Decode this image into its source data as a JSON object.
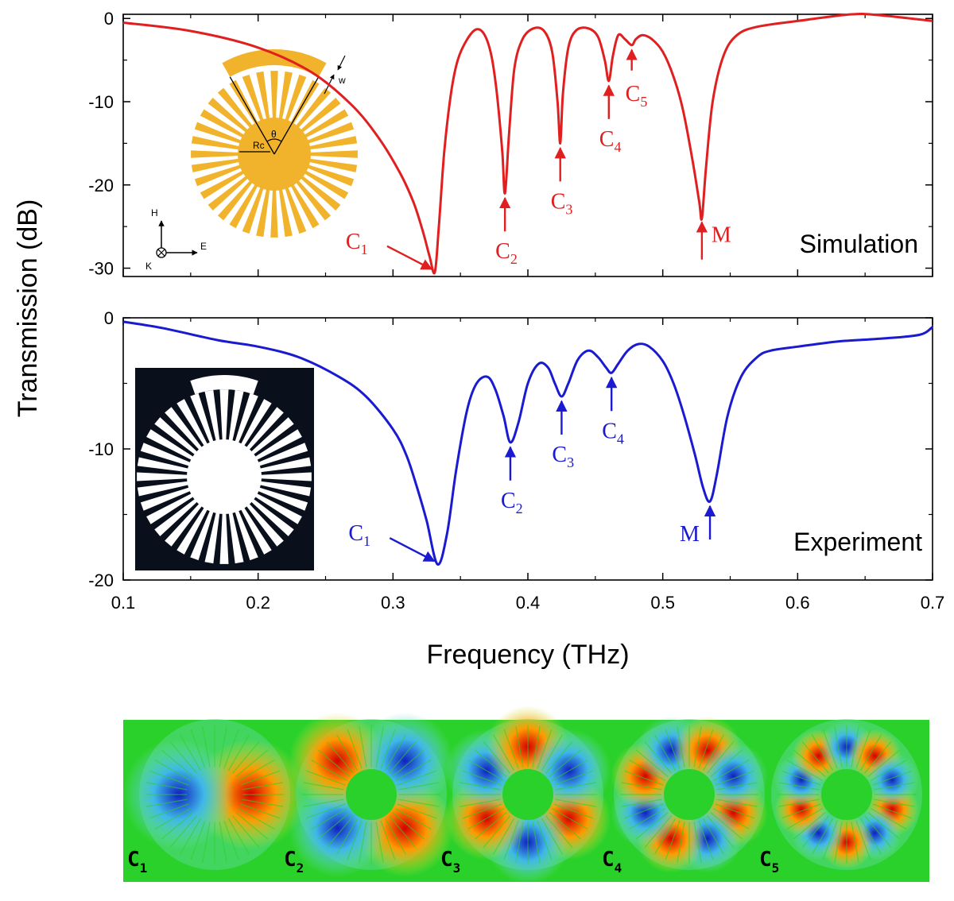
{
  "chart_data": [
    {
      "type": "line",
      "title": "Simulation",
      "xlabel": "Frequency (THz)",
      "ylabel": "Transmission (dB)",
      "xlim": [
        0.1,
        0.7
      ],
      "ylim": [
        -31,
        0.5
      ],
      "yticks": [
        0,
        -10,
        -20,
        -30
      ],
      "ytick_labels": [
        "0",
        "-10",
        "-20",
        "-30"
      ],
      "color": "#e02020",
      "series": [
        {
          "name": "Simulation",
          "x": [
            0.1,
            0.15,
            0.2,
            0.24,
            0.27,
            0.29,
            0.305,
            0.315,
            0.322,
            0.327,
            0.331,
            0.334,
            0.338,
            0.343,
            0.348,
            0.355,
            0.362,
            0.368,
            0.373,
            0.377,
            0.381,
            0.383,
            0.386,
            0.39,
            0.396,
            0.404,
            0.412,
            0.418,
            0.422,
            0.424,
            0.426,
            0.43,
            0.436,
            0.445,
            0.452,
            0.457,
            0.46,
            0.463,
            0.467,
            0.472,
            0.477,
            0.48,
            0.485,
            0.492,
            0.5,
            0.508,
            0.515,
            0.522,
            0.527,
            0.529,
            0.532,
            0.537,
            0.545,
            0.555,
            0.57,
            0.6,
            0.64,
            0.66,
            0.7
          ],
          "y": [
            -0.5,
            -1.5,
            -3.5,
            -6.5,
            -10.5,
            -14.5,
            -18.5,
            -22,
            -25.5,
            -28.5,
            -30.5,
            -25,
            -16,
            -9,
            -5,
            -2.5,
            -1.3,
            -2,
            -4.5,
            -9,
            -16,
            -21,
            -14,
            -6,
            -2.5,
            -1.2,
            -1.5,
            -4,
            -10,
            -15,
            -9,
            -3.5,
            -1.4,
            -1.2,
            -2.2,
            -5,
            -7.5,
            -4.5,
            -2,
            -2.5,
            -3.2,
            -2.5,
            -2,
            -2.5,
            -4,
            -7,
            -11,
            -17,
            -22,
            -24,
            -18,
            -10,
            -4.5,
            -2,
            -1,
            -0.3,
            0.5,
            0.4,
            -0.3
          ]
        }
      ],
      "annotations": [
        {
          "label": "C",
          "sub": "1",
          "x": 0.331,
          "y": -30.5
        },
        {
          "label": "C",
          "sub": "2",
          "x": 0.383,
          "y": -21
        },
        {
          "label": "C",
          "sub": "3",
          "x": 0.424,
          "y": -15
        },
        {
          "label": "C",
          "sub": "4",
          "x": 0.46,
          "y": -7.5
        },
        {
          "label": "C",
          "sub": "5",
          "x": 0.477,
          "y": -3.2
        },
        {
          "label": "M",
          "sub": "",
          "x": 0.529,
          "y": -24
        }
      ],
      "inset": {
        "labels": [
          "w",
          "Rc",
          "θ"
        ],
        "axes": [
          "H",
          "E",
          "K"
        ]
      }
    },
    {
      "type": "line",
      "title": "Experiment",
      "xlabel": "Frequency (THz)",
      "ylabel": "Transmission (dB)",
      "xlim": [
        0.1,
        0.7
      ],
      "ylim": [
        -20,
        0
      ],
      "xticks": [
        0.1,
        0.2,
        0.3,
        0.4,
        0.5,
        0.6,
        0.7
      ],
      "xtick_labels": [
        "0.1",
        "0.2",
        "0.3",
        "0.4",
        "0.5",
        "0.6",
        "0.7"
      ],
      "yticks": [
        0,
        -10,
        -20
      ],
      "ytick_labels": [
        "0",
        "-10",
        "-20"
      ],
      "color": "#1a1ad0",
      "series": [
        {
          "name": "Experiment",
          "x": [
            0.1,
            0.13,
            0.17,
            0.2,
            0.23,
            0.26,
            0.28,
            0.3,
            0.31,
            0.318,
            0.325,
            0.333,
            0.34,
            0.347,
            0.355,
            0.362,
            0.37,
            0.376,
            0.382,
            0.387,
            0.393,
            0.4,
            0.408,
            0.415,
            0.42,
            0.425,
            0.43,
            0.437,
            0.445,
            0.452,
            0.458,
            0.462,
            0.467,
            0.474,
            0.482,
            0.49,
            0.5,
            0.508,
            0.516,
            0.524,
            0.53,
            0.535,
            0.54,
            0.548,
            0.558,
            0.57,
            0.58,
            0.6,
            0.63,
            0.66,
            0.69,
            0.7
          ],
          "y": [
            -0.3,
            -0.8,
            -1.7,
            -2.2,
            -3,
            -4.5,
            -6,
            -8.5,
            -10.5,
            -13,
            -15.5,
            -18.8,
            -16.5,
            -11.5,
            -7,
            -5,
            -4.5,
            -5.5,
            -7.5,
            -9.5,
            -8,
            -5,
            -3.5,
            -3.8,
            -5,
            -6,
            -5,
            -3.2,
            -2.5,
            -3,
            -3.8,
            -4.2,
            -3.5,
            -2.5,
            -2,
            -2.2,
            -3.3,
            -5,
            -7.5,
            -10.5,
            -13,
            -14,
            -12,
            -7.5,
            -4.5,
            -3,
            -2.5,
            -2.2,
            -1.8,
            -1.6,
            -1.3,
            -0.7
          ]
        }
      ],
      "annotations": [
        {
          "label": "C",
          "sub": "1",
          "x": 0.333,
          "y": -18.8
        },
        {
          "label": "C",
          "sub": "2",
          "x": 0.387,
          "y": -9.5
        },
        {
          "label": "C",
          "sub": "3",
          "x": 0.425,
          "y": -6
        },
        {
          "label": "C",
          "sub": "4",
          "x": 0.462,
          "y": -4.2
        },
        {
          "label": "M",
          "sub": "",
          "x": 0.535,
          "y": -14
        }
      ]
    }
  ],
  "mode_panels": [
    {
      "label": "C",
      "sub": "1"
    },
    {
      "label": "C",
      "sub": "2"
    },
    {
      "label": "C",
      "sub": "3"
    },
    {
      "label": "C",
      "sub": "4"
    },
    {
      "label": "C",
      "sub": "5"
    }
  ],
  "colors": {
    "panel_bg": "#2bd12b",
    "red": "#e02020",
    "blue": "#1a1ad0",
    "gold": "#f2b32c"
  }
}
